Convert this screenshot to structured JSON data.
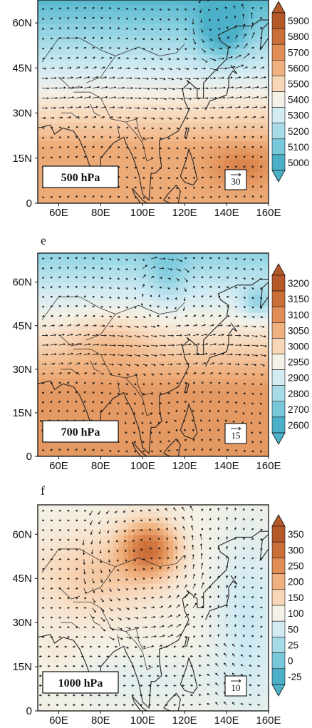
{
  "chart_data": [
    {
      "type": "heatmap",
      "panel": "",
      "level_label": "500 hPa",
      "reference_vector": "30",
      "x_ticks": [
        "60E",
        "80E",
        "100E",
        "120E",
        "140E",
        "160E"
      ],
      "y_ticks": [
        "60N",
        "45N",
        "30N",
        "15N",
        "0"
      ],
      "xlim": [
        50,
        160
      ],
      "ylim": [
        0,
        70
      ],
      "colorbar": [
        "5900",
        "5800",
        "5700",
        "5600",
        "5500",
        "5400",
        "5300",
        "5200",
        "5100",
        "5000"
      ]
    },
    {
      "type": "heatmap",
      "panel": "e",
      "level_label": "700 hPa",
      "reference_vector": "15",
      "x_ticks": [
        "60E",
        "80E",
        "100E",
        "120E",
        "140E",
        "160E"
      ],
      "y_ticks": [
        "60N",
        "45N",
        "30N",
        "15N",
        "0"
      ],
      "xlim": [
        50,
        160
      ],
      "ylim": [
        0,
        70
      ],
      "colorbar": [
        "3200",
        "3150",
        "3100",
        "3050",
        "3000",
        "2950",
        "2900",
        "2800",
        "2700",
        "2600"
      ]
    },
    {
      "type": "heatmap",
      "panel": "f",
      "level_label": "1000 hPa",
      "reference_vector": "10",
      "x_ticks": [
        "60E",
        "80E",
        "100E",
        "120E",
        "140E",
        "160E"
      ],
      "y_ticks": [
        "60N",
        "45N",
        "30N",
        "15N",
        "0"
      ],
      "xlim": [
        50,
        160
      ],
      "ylim": [
        0,
        70
      ],
      "colorbar": [
        "350",
        "300",
        "250",
        "200",
        "150",
        "100",
        "50",
        "25",
        "0",
        "-25"
      ]
    }
  ],
  "colors": {
    "colorbar_top_to_bottom": [
      "#b5582a",
      "#cb6f39",
      "#e08e56",
      "#efb17f",
      "#f7d6b8",
      "#f4f1e6",
      "#d3ebf3",
      "#a7dbe8",
      "#78c8db",
      "#4cb1c8"
    ],
    "axis": "#111111",
    "wind_arrow": "#111111",
    "land_outline": "#222222"
  }
}
